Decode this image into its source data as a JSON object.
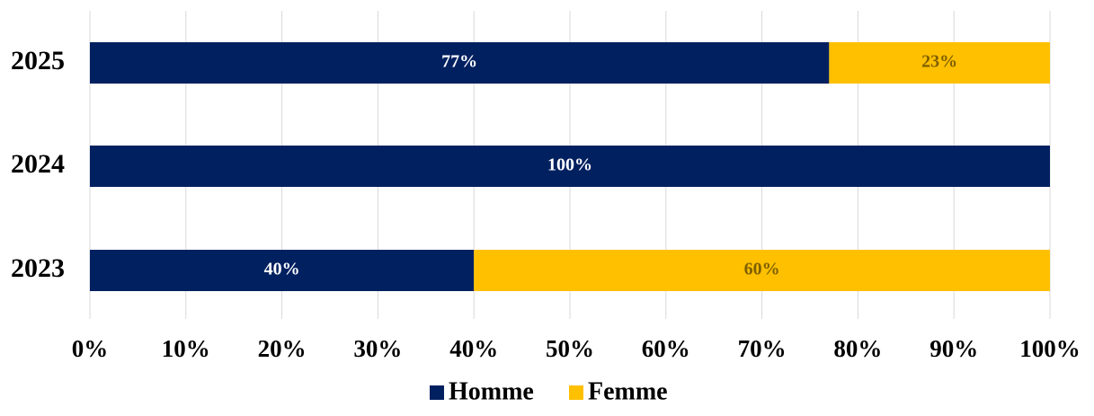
{
  "chart_data": {
    "type": "stacked-barh",
    "categories": [
      "2025",
      "2024",
      "2023"
    ],
    "series": [
      {
        "name": "Homme",
        "color": "#002060",
        "values": [
          77,
          100,
          40
        ],
        "value_labels": [
          "77%",
          "100%",
          "40%"
        ]
      },
      {
        "name": "Femme",
        "color": "#FFC000",
        "values": [
          23,
          0,
          60
        ],
        "value_labels": [
          "23%",
          null,
          "60%"
        ]
      }
    ],
    "xlim": [
      0,
      100
    ],
    "xticks": [
      {
        "value": 0,
        "label": "0%"
      },
      {
        "value": 10,
        "label": "10%"
      },
      {
        "value": 20,
        "label": "20%"
      },
      {
        "value": 30,
        "label": "30%"
      },
      {
        "value": 40,
        "label": "40%"
      },
      {
        "value": 50,
        "label": "50%"
      },
      {
        "value": 60,
        "label": "60%"
      },
      {
        "value": 70,
        "label": "70%"
      },
      {
        "value": 80,
        "label": "80%"
      },
      {
        "value": 90,
        "label": "90%"
      },
      {
        "value": 100,
        "label": "100%"
      }
    ],
    "grid": true,
    "legend": "bottom"
  }
}
